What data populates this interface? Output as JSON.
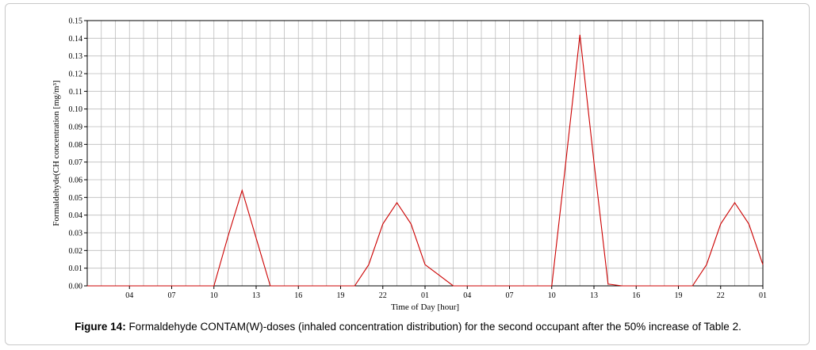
{
  "caption": {
    "label": "Figure 14:",
    "text": " Formaldehyde CONTAM(W)-doses (inhaled concentration distribution) for the second occupant after the 50% increase of Table 2."
  },
  "chart_data": {
    "type": "line",
    "xlabel": "Time of Day [hour]",
    "ylabel": "Formaldehyde(CH concentration [mg/m³]",
    "ylim": [
      0,
      0.15
    ],
    "y_ticks": [
      "0.00",
      "0.01",
      "0.02",
      "0.03",
      "0.04",
      "0.05",
      "0.06",
      "0.07",
      "0.08",
      "0.09",
      "0.10",
      "0.11",
      "0.12",
      "0.13",
      "0.14",
      "0.15"
    ],
    "x_ticks": [
      "04",
      "07",
      "10",
      "13",
      "16",
      "19",
      "22",
      "01",
      "04",
      "07",
      "10",
      "13",
      "16",
      "19",
      "22",
      "01"
    ],
    "x_range_hours": [
      0,
      48
    ],
    "x_tick_hours": [
      3,
      6,
      9,
      12,
      15,
      18,
      21,
      24,
      27,
      30,
      33,
      36,
      39,
      42,
      45,
      48
    ],
    "grid": true,
    "line_color": "#cc0000",
    "series": [
      {
        "x": [
          0,
          1,
          2,
          3,
          4,
          5,
          6,
          7,
          8,
          9,
          10,
          11,
          12,
          13,
          14,
          15,
          16,
          17,
          18,
          19,
          20,
          21,
          22,
          23,
          24,
          25,
          26,
          27,
          28,
          29,
          30,
          31,
          32,
          33,
          34,
          35,
          36,
          37,
          38,
          39,
          40,
          41,
          42,
          43,
          44,
          45,
          46,
          47,
          48
        ],
        "values": [
          0,
          0,
          0,
          0,
          0,
          0,
          0,
          0,
          0,
          0,
          0.028,
          0.054,
          0.027,
          0,
          0,
          0,
          0,
          0,
          0,
          0,
          0.012,
          0.035,
          0.047,
          0.035,
          0.012,
          0.006,
          0,
          0,
          0,
          0,
          0,
          0,
          0,
          0,
          0.07,
          0.142,
          0.07,
          0.001,
          0,
          0,
          0,
          0,
          0,
          0,
          0.012,
          0.035,
          0.047,
          0.035,
          0.012
        ]
      }
    ]
  }
}
